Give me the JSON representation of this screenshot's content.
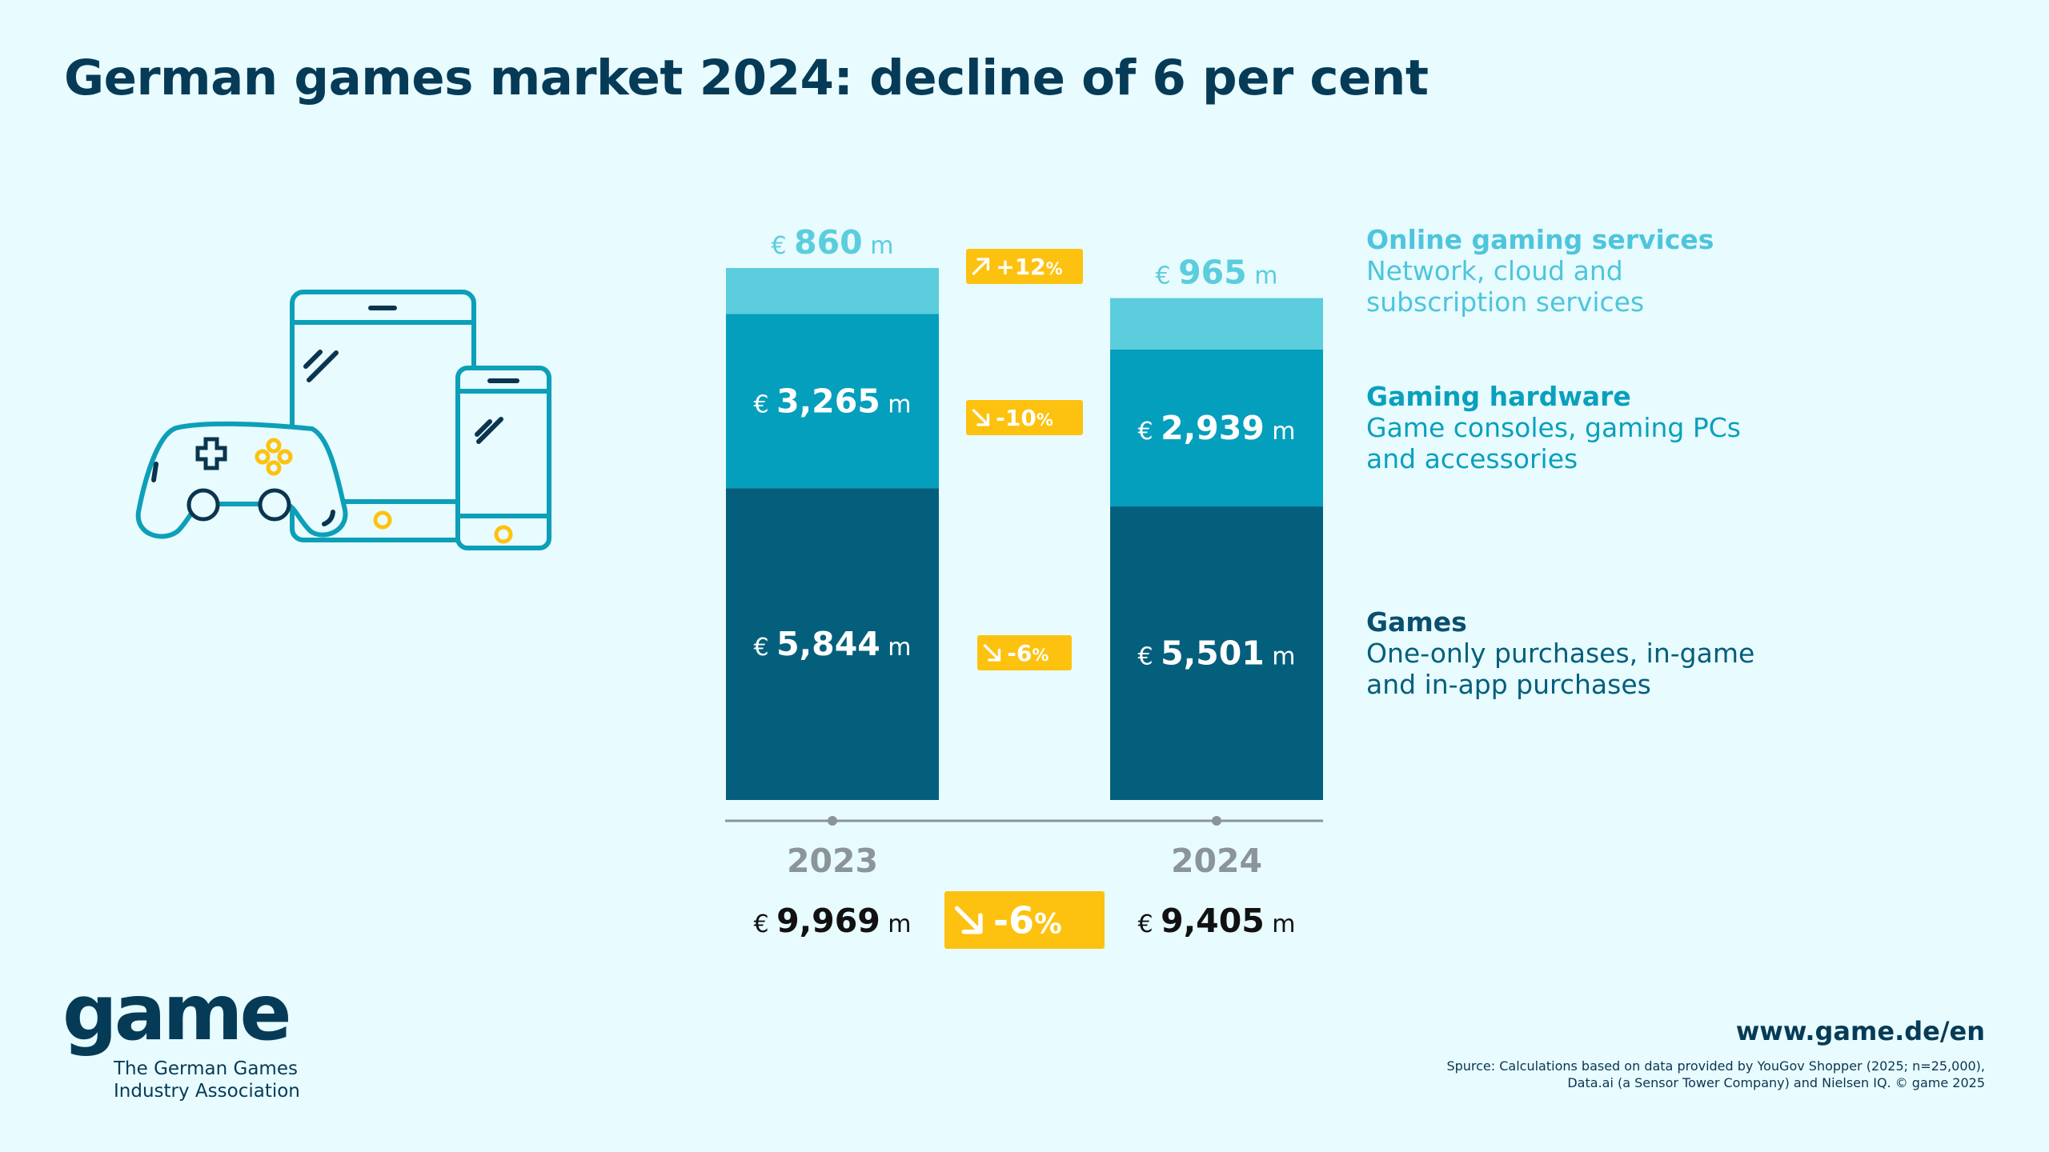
{
  "title": "German games market 2024: decline of 6 per cent",
  "chart_data": {
    "type": "bar",
    "stacked": true,
    "categories": [
      "2023",
      "2024"
    ],
    "series": [
      {
        "name": "Games",
        "values": [
          5844,
          5501
        ],
        "labels": [
          "5,844",
          "5,501"
        ],
        "color": "#045f7d",
        "change": "-6"
      },
      {
        "name": "Gaming hardware",
        "values": [
          3265,
          2939
        ],
        "labels": [
          "3,265",
          "2,939"
        ],
        "color": "#049fbd",
        "change": "-10"
      },
      {
        "name": "Online gaming services",
        "values": [
          860,
          965
        ],
        "labels": [
          "860",
          "965"
        ],
        "color": "#5bcddd",
        "change": "+12"
      }
    ],
    "totals": {
      "values": [
        9969,
        9405
      ],
      "labels": [
        "9,969",
        "9,405"
      ],
      "change": "-6"
    },
    "currency": "€",
    "unit": "m",
    "percent": "%",
    "badge_color": "#fdc20f",
    "axis_color": "#8a9499"
  },
  "legend": [
    {
      "title": "Online gaming services",
      "line1": "Network, cloud and",
      "line2": "subscription services"
    },
    {
      "title": "Gaming hardware",
      "line1": "Game consoles, gaming PCs",
      "line2": "and accessories"
    },
    {
      "title": "Games",
      "line1": "One-only purchases, in-game",
      "line2": "and in-app purchases"
    }
  ],
  "logo": {
    "word": "game",
    "line1": "The German Games",
    "line2": "Industry Association"
  },
  "footer": {
    "url": "www.game.de/en",
    "source_line1": "Spurce: Calculations based on data provided by YouGov Shopper (2025; n=25,000),",
    "source_line2": "Data.ai (a Sensor Tower Company) and Nielsen IQ. © game 2025"
  },
  "icons": [
    "gamepad-icon",
    "tablet-icon",
    "smartphone-icon"
  ]
}
